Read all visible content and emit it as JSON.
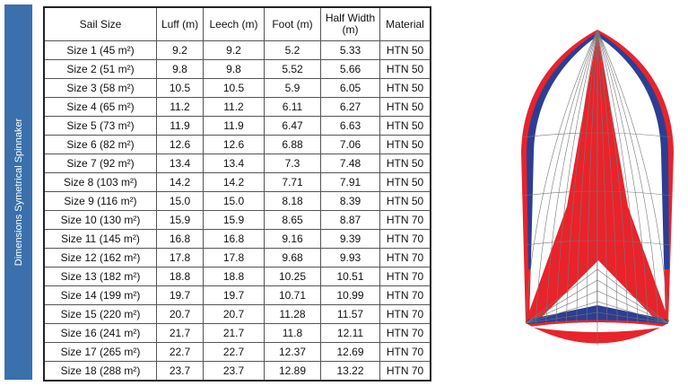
{
  "sidebar_title": "Dimensions Symetrical Spinnaker",
  "table": {
    "headers": [
      "Sail Size",
      "Luff (m)",
      "Leech (m)",
      "Foot (m)",
      "Half Width (m)",
      "Material"
    ],
    "rows": [
      [
        "Size 1 (45 m²)",
        "9.2",
        "9.2",
        "5.2",
        "5.33",
        "HTN 50"
      ],
      [
        "Size 2 (51 m²)",
        "9.8",
        "9.8",
        "5.52",
        "5.66",
        "HTN 50"
      ],
      [
        "Size 3 (58 m²)",
        "10.5",
        "10.5",
        "5.9",
        "6.05",
        "HTN 50"
      ],
      [
        "Size 4 (65 m²)",
        "11.2",
        "11.2",
        "6.11",
        "6.27",
        "HTN 50"
      ],
      [
        "Size 5 (73 m²)",
        "11.9",
        "11.9",
        "6.47",
        "6.63",
        "HTN 50"
      ],
      [
        "Size 6 (82 m²)",
        "12.6",
        "12.6",
        "6.88",
        "7.06",
        "HTN 50"
      ],
      [
        "Size 7 (92 m²)",
        "13.4",
        "13.4",
        "7.3",
        "7.48",
        "HTN 50"
      ],
      [
        "Size 8 (103 m²)",
        "14.2",
        "14.2",
        "7.71",
        "7.91",
        "HTN 50"
      ],
      [
        "Size 9 (116 m²)",
        "15.0",
        "15.0",
        "8.18",
        "8.39",
        "HTN 50"
      ],
      [
        "Size 10 (130 m²)",
        "15.9",
        "15.9",
        "8.65",
        "8.87",
        "HTN 70"
      ],
      [
        "Size 11 (145 m²)",
        "16.8",
        "16.8",
        "9.16",
        "9.39",
        "HTN 70"
      ],
      [
        "Size 12 (162 m²)",
        "17.8",
        "17.8",
        "9.68",
        "9.93",
        "HTN 70"
      ],
      [
        "Size 13 (182 m²)",
        "18.8",
        "18.8",
        "10.25",
        "10.51",
        "HTN 70"
      ],
      [
        "Size 14 (199 m²)",
        "19.7",
        "19.7",
        "10.71",
        "10.99",
        "HTN 70"
      ],
      [
        "Size 15 (220 m²)",
        "20.7",
        "20.7",
        "11.28",
        "11.57",
        "HTN 70"
      ],
      [
        "Size 16 (241 m²)",
        "21.7",
        "21.7",
        "11.8",
        "12.11",
        "HTN 70"
      ],
      [
        "Size 17 (265 m²)",
        "22.7",
        "22.7",
        "12.37",
        "12.69",
        "HTN 70"
      ],
      [
        "Size 18 (288 m²)",
        "23.7",
        "23.7",
        "12.89",
        "13.22",
        "HTN 70"
      ]
    ]
  },
  "colors": {
    "sidebar": "#3a70ab",
    "red": "#e8232b",
    "blue": "#2b3e93"
  }
}
